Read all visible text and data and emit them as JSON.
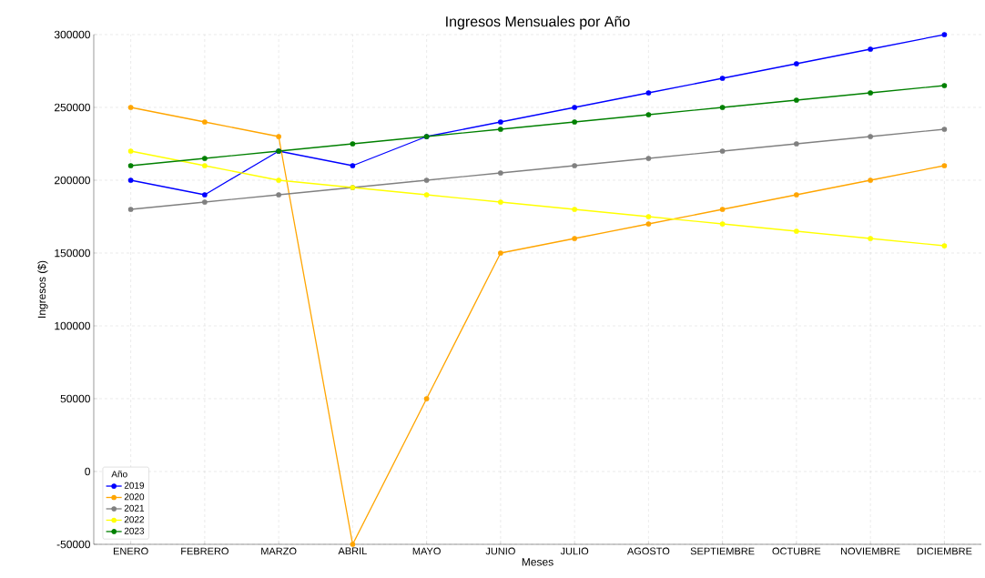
{
  "chart_data": {
    "type": "line",
    "title": "Ingresos Mensuales por Año",
    "xlabel": "Meses",
    "ylabel": "Ingresos ($)",
    "legend_title": "Año",
    "categories": [
      "ENERO",
      "FEBRERO",
      "MARZO",
      "ABRIL",
      "MAYO",
      "JUNIO",
      "JULIO",
      "AGOSTO",
      "SEPTIEMBRE",
      "OCTUBRE",
      "NOVIEMBRE",
      "DICIEMBRE"
    ],
    "series": [
      {
        "name": "2019",
        "color": "#0000ff",
        "values": [
          200000,
          190000,
          220000,
          210000,
          230000,
          240000,
          250000,
          260000,
          270000,
          280000,
          290000,
          300000
        ]
      },
      {
        "name": "2020",
        "color": "#ffa500",
        "values": [
          250000,
          240000,
          230000,
          -50000,
          50000,
          150000,
          160000,
          170000,
          180000,
          190000,
          200000,
          210000
        ]
      },
      {
        "name": "2021",
        "color": "#808080",
        "values": [
          180000,
          185000,
          190000,
          195000,
          200000,
          205000,
          210000,
          215000,
          220000,
          225000,
          230000,
          235000
        ]
      },
      {
        "name": "2022",
        "color": "#ffff00",
        "values": [
          220000,
          210000,
          200000,
          195000,
          190000,
          185000,
          180000,
          175000,
          170000,
          165000,
          160000,
          155000
        ]
      },
      {
        "name": "2023",
        "color": "#008000",
        "values": [
          210000,
          215000,
          220000,
          225000,
          230000,
          235000,
          240000,
          245000,
          250000,
          255000,
          260000,
          265000
        ]
      }
    ],
    "ylim": [
      -50000,
      300000
    ],
    "yticks": [
      -50000,
      0,
      50000,
      100000,
      150000,
      200000,
      250000,
      300000
    ],
    "grid": true,
    "legend": "bottom left",
    "marker": "circle",
    "line_style": "solid"
  }
}
